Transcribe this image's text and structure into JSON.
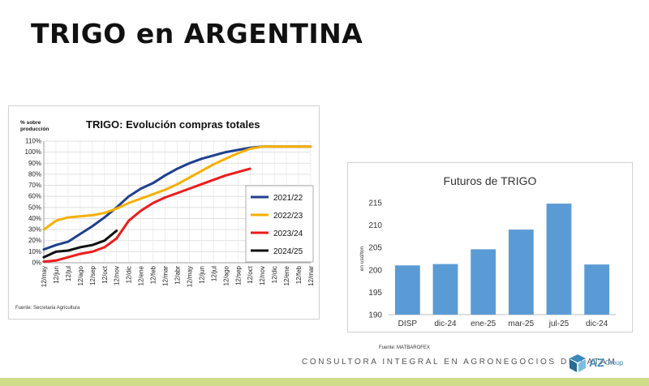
{
  "slide": {
    "title": "TRIGO en ARGENTINA",
    "footer_tagline": "CONSULTORA INTEGRAL EN AGRONEGOCIOS DE LATAM",
    "logo_text": "AZ",
    "logo_sub": "Group",
    "accent_bar_color": "#cfdc8a",
    "logo_color": "#3a89b8"
  },
  "chart_data": [
    {
      "type": "line",
      "title": "TRIGO: Evolución compras totales",
      "ylabel": "% sobre producción",
      "xlabel": "",
      "source": "Fuente: Secretaria Agricultura",
      "ylim": [
        0,
        110
      ],
      "yticks": [
        0,
        10,
        20,
        30,
        40,
        50,
        60,
        70,
        80,
        90,
        100,
        110
      ],
      "ytick_suffix": "%",
      "grid": true,
      "legend_position": "right",
      "categories": [
        "12/may",
        "12/jun",
        "12/jul",
        "12/ago",
        "12/sep",
        "12/oct",
        "12/nov",
        "12/dic",
        "12/ene",
        "12/feb",
        "12/mar",
        "12/abr",
        "12/may",
        "12/jun",
        "12/jul",
        "12/ago",
        "12/sep",
        "12/oct",
        "12/nov",
        "12/dic",
        "12/ene",
        "12/feb",
        "12/mar"
      ],
      "series": [
        {
          "name": "2021/22",
          "color": "#1f3f8f",
          "values": [
            12,
            16,
            19,
            26,
            33,
            41,
            50,
            60,
            67,
            72,
            79,
            85,
            90,
            94,
            97,
            100,
            102,
            104,
            105,
            105,
            105,
            105,
            105
          ]
        },
        {
          "name": "2022/23",
          "color": "#f5b000",
          "values": [
            30,
            38,
            41,
            42,
            43,
            45,
            49,
            54,
            58,
            62,
            66,
            71,
            77,
            83,
            89,
            94,
            99,
            103,
            105,
            105,
            105,
            105,
            105
          ]
        },
        {
          "name": "2023/24",
          "color": "#ee1c1c",
          "values": [
            1,
            2,
            5,
            8,
            10,
            14,
            22,
            38,
            47,
            54,
            59,
            63,
            67,
            71,
            75,
            79,
            82,
            85,
            null,
            null,
            null,
            null,
            null
          ]
        },
        {
          "name": "2024/25",
          "color": "#111111",
          "values": [
            5,
            10,
            11,
            14,
            16,
            20,
            29,
            null,
            null,
            null,
            null,
            null,
            null,
            null,
            null,
            null,
            null,
            null,
            null,
            null,
            null,
            null,
            null
          ]
        }
      ]
    },
    {
      "type": "bar",
      "title": "Futuros de TRIGO",
      "ylabel": "en usd/ton",
      "xlabel": "",
      "source": "Fuente: MATBAROFEX",
      "ylim": [
        190,
        215
      ],
      "yticks": [
        190,
        195,
        200,
        205,
        210,
        215
      ],
      "grid": false,
      "bar_color": "#5b9bd5",
      "categories": [
        "DISP",
        "dic-24",
        "ene-25",
        "mar-25",
        "jul-25",
        "dic-24"
      ],
      "values": [
        201,
        201.3,
        204.6,
        209,
        214.8,
        201.2
      ]
    }
  ]
}
